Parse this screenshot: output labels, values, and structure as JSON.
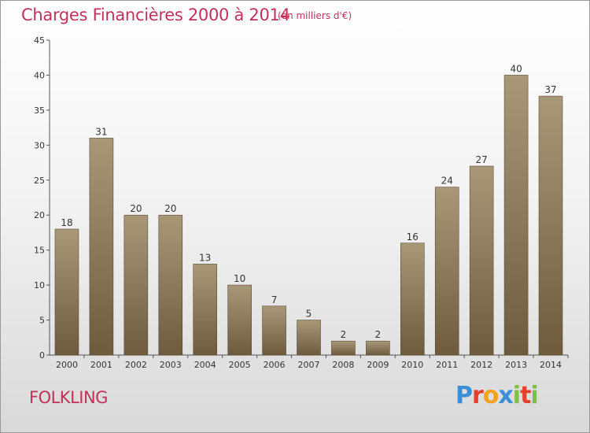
{
  "header": {
    "title": "Charges Financières 2000 à 2014",
    "subtitle": "(en milliers d'€)"
  },
  "footer": {
    "commune": "FOLKLING",
    "logo_letters": [
      "P",
      "r",
      "o",
      "x",
      "i",
      "t",
      "i"
    ],
    "logo_colors": [
      "#3a8fd8",
      "#e8402f",
      "#f4a21c",
      "#3a8fd8",
      "#7cc142",
      "#e8402f",
      "#7cc142"
    ]
  },
  "colors": {
    "title": "#c0325a",
    "bar_light": "#a89878",
    "bar_dark": "#6e5b3e",
    "axis": "#555555"
  },
  "chart_data": {
    "type": "bar",
    "categories": [
      "2000",
      "2001",
      "2002",
      "2003",
      "2004",
      "2005",
      "2006",
      "2007",
      "2008",
      "2009",
      "2010",
      "2011",
      "2012",
      "2013",
      "2014"
    ],
    "values": [
      18,
      31,
      20,
      20,
      13,
      10,
      7,
      5,
      2,
      2,
      16,
      24,
      27,
      40,
      37
    ],
    "title": "Charges Financières 2000 à 2014",
    "subtitle": "(en milliers d'€)",
    "ylim": [
      0,
      45
    ],
    "yticks": [
      0,
      5,
      10,
      15,
      20,
      25,
      30,
      35,
      40,
      45
    ],
    "grid": false,
    "data_labels": true
  }
}
